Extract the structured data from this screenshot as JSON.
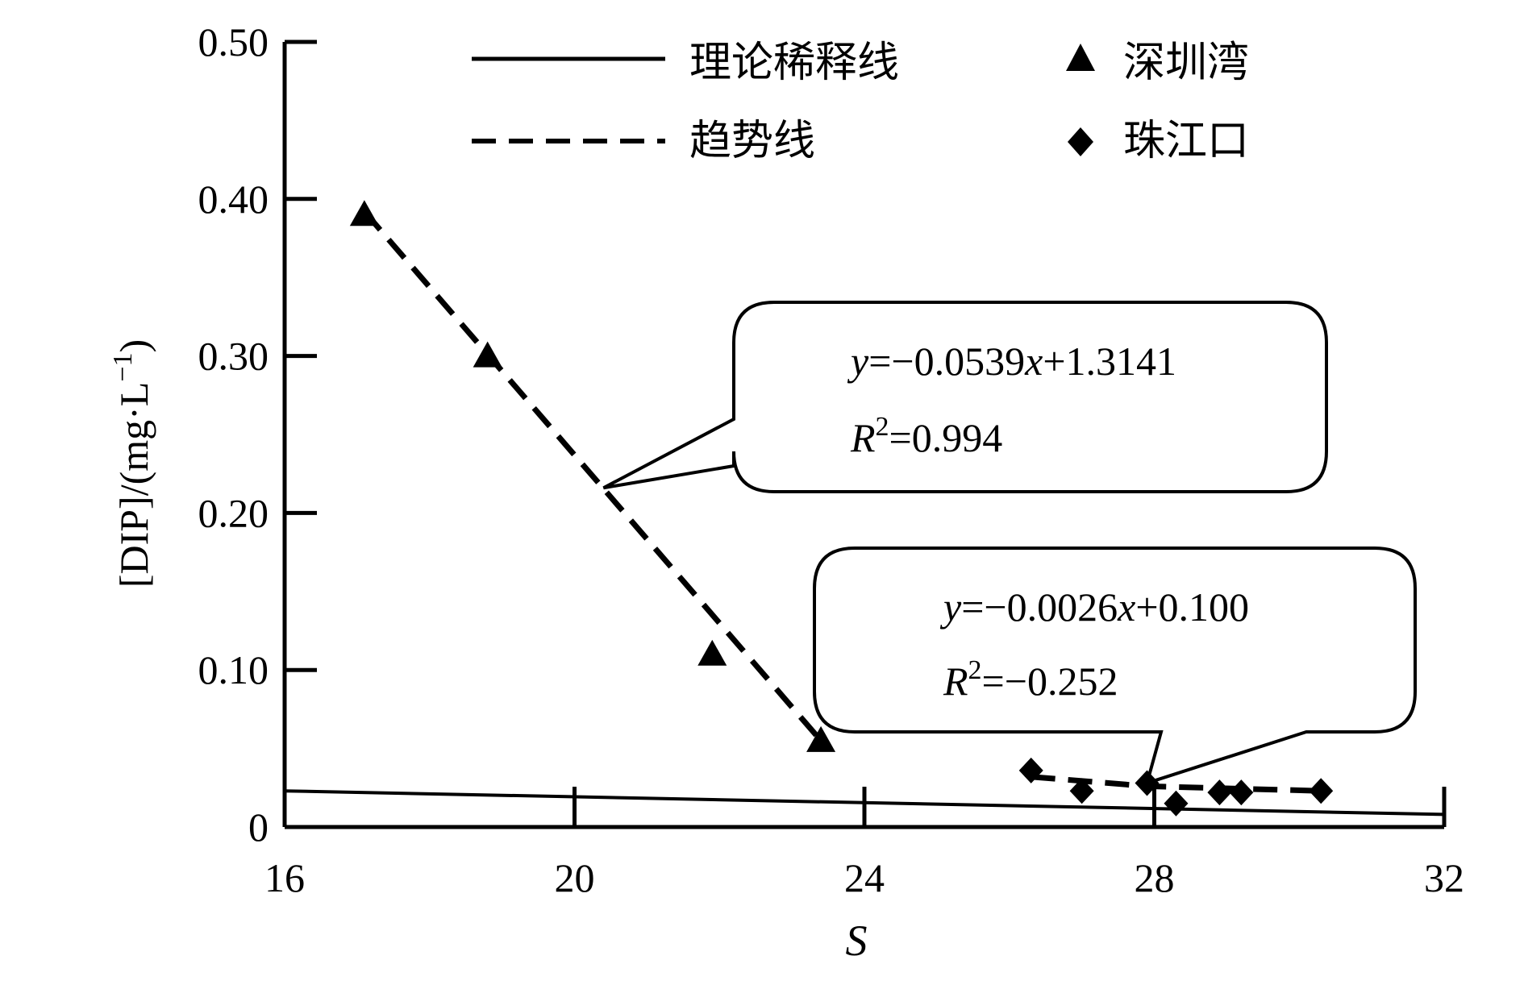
{
  "chart_data": {
    "type": "scatter",
    "xlabel": "S",
    "ylabel": "[DIP]/(mg·L−1)",
    "ylabel_main": "[DIP]/(mg·L",
    "ylabel_exp": "−1",
    "ylabel_close": ")",
    "xlim": [
      16,
      32
    ],
    "ylim": [
      0,
      0.5
    ],
    "x_ticks": [
      16,
      20,
      24,
      28,
      32
    ],
    "x_tick_labels": [
      "16",
      "20",
      "24",
      "28",
      "32"
    ],
    "y_ticks": [
      0,
      0.1,
      0.2,
      0.3,
      0.4,
      0.5
    ],
    "y_tick_labels": [
      "0",
      "0.10",
      "0.20",
      "0.30",
      "0.40",
      "0.50"
    ],
    "grid": false,
    "legend_position": "top",
    "legend": [
      {
        "label": "理论稀释线",
        "kind": "line-solid"
      },
      {
        "label": "深圳湾",
        "kind": "marker-triangle"
      },
      {
        "label": "趋势线",
        "kind": "line-dashed"
      },
      {
        "label": "珠江口",
        "kind": "marker-diamond"
      }
    ],
    "series": [
      {
        "name": "深圳湾",
        "marker": "triangle",
        "points": [
          {
            "x": 17.1,
            "y": 0.39
          },
          {
            "x": 18.8,
            "y": 0.3
          },
          {
            "x": 21.9,
            "y": 0.11
          },
          {
            "x": 23.4,
            "y": 0.055
          }
        ]
      },
      {
        "name": "珠江口",
        "marker": "diamond",
        "points": [
          {
            "x": 26.3,
            "y": 0.036
          },
          {
            "x": 27.0,
            "y": 0.023
          },
          {
            "x": 27.9,
            "y": 0.028
          },
          {
            "x": 28.3,
            "y": 0.015
          },
          {
            "x": 28.9,
            "y": 0.022
          },
          {
            "x": 29.2,
            "y": 0.022
          },
          {
            "x": 30.3,
            "y": 0.023
          }
        ]
      }
    ],
    "theoretical_dilution_line": {
      "points": [
        {
          "x": 16,
          "y": 0.023
        },
        {
          "x": 32,
          "y": 0.008
        }
      ]
    },
    "trend_lines": [
      {
        "points": [
          {
            "x": 17.1,
            "y": 0.392
          },
          {
            "x": 23.4,
            "y": 0.055
          }
        ]
      },
      {
        "points": [
          {
            "x": 26.3,
            "y": 0.032
          },
          {
            "x": 27.9,
            "y": 0.026
          },
          {
            "x": 30.3,
            "y": 0.023
          }
        ]
      }
    ],
    "annotations": [
      {
        "equation": {
          "y": "y",
          "body": "=−0.0539",
          "x": "x",
          "tail": "+1.3141"
        },
        "r2": {
          "R": "R",
          "sup": "2",
          "tail": "=0.994"
        },
        "pointer": {
          "x": 20.4,
          "y": 0.216
        }
      },
      {
        "equation": {
          "y": "y",
          "body": "=−0.0026",
          "x": "x",
          "tail": "+0.100"
        },
        "r2": {
          "R": "R",
          "sup": "2",
          "tail": "=−0.252"
        },
        "pointer": {
          "x": 27.9,
          "y": 0.028
        }
      }
    ]
  }
}
